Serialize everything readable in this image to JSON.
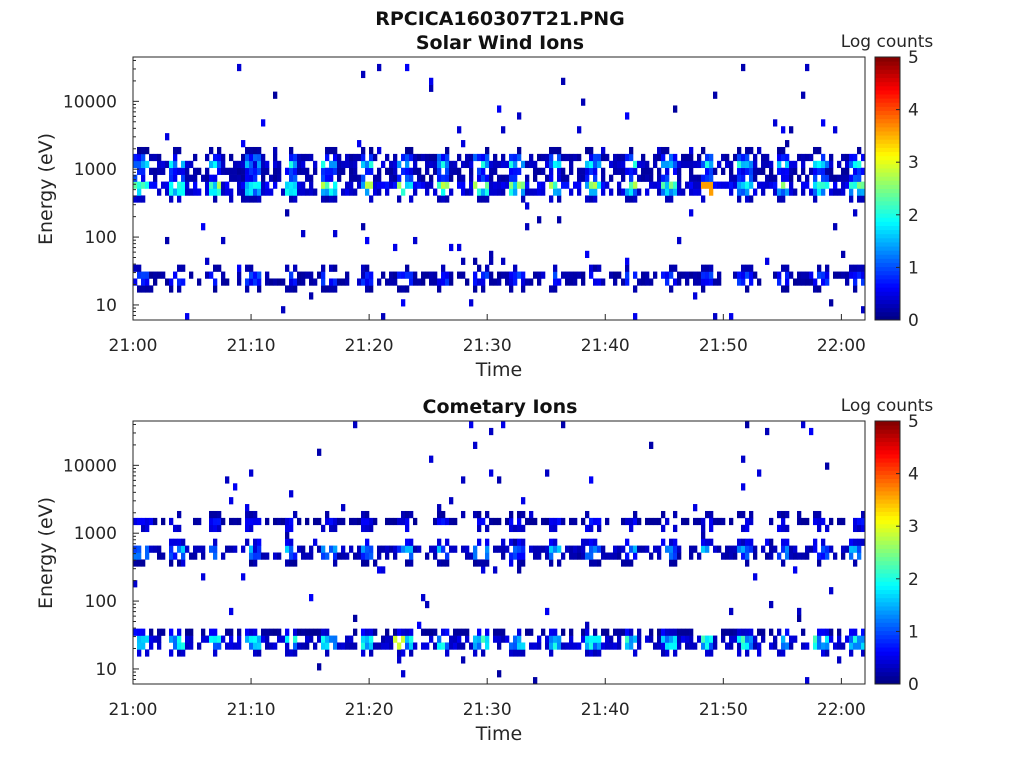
{
  "figure_title": "RPCICA160307T21.PNG",
  "colors": {
    "colormap": [
      "#00007f",
      "#0000ff",
      "#007fff",
      "#00ffff",
      "#7fff7f",
      "#ffff00",
      "#ff7f00",
      "#ff0000",
      "#7f0000"
    ]
  },
  "chart_data": [
    {
      "type": "heatmap",
      "title": "Solar Wind Ions",
      "xlabel": "Time",
      "ylabel": "Energy (eV)",
      "x_ticks": [
        "21:00",
        "21:10",
        "21:20",
        "21:30",
        "21:40",
        "21:50",
        "22:00"
      ],
      "x_range_minutes": [
        0,
        62
      ],
      "y_ticks": [
        "10",
        "100",
        "1000",
        "10000"
      ],
      "y_range_ev": [
        6,
        45000
      ],
      "y_scale": "log",
      "colorbar": {
        "label": "Log counts",
        "ticks": [
          "0",
          "1",
          "2",
          "3",
          "4",
          "5"
        ],
        "range": [
          0,
          5
        ]
      },
      "bands": [
        {
          "energy_ev": 1200,
          "intensity": 1.8
        },
        {
          "energy_ev": 550,
          "intensity": 2.6
        },
        {
          "energy_ev": 25,
          "intensity": 1.0
        }
      ],
      "peak": {
        "time_minutes": 48.5,
        "energy_ev": 560,
        "log_counts": 3.6
      }
    },
    {
      "type": "heatmap",
      "title": "Cometary Ions",
      "xlabel": "Time",
      "ylabel": "Energy (eV)",
      "x_ticks": [
        "21:00",
        "21:10",
        "21:20",
        "21:30",
        "21:40",
        "21:50",
        "22:00"
      ],
      "x_range_minutes": [
        0,
        62
      ],
      "y_ticks": [
        "10",
        "100",
        "1000",
        "10000"
      ],
      "y_range_ev": [
        6,
        45000
      ],
      "y_scale": "log",
      "colorbar": {
        "label": "Log counts",
        "ticks": [
          "0",
          "1",
          "2",
          "3",
          "4",
          "5"
        ],
        "range": [
          0,
          5
        ]
      },
      "bands": [
        {
          "energy_ev": 25,
          "intensity": 2.2
        },
        {
          "energy_ev": 550,
          "intensity": 1.5
        },
        {
          "energy_ev": 1400,
          "intensity": 0.7
        }
      ],
      "peak": {
        "time_minutes": 22.5,
        "energy_ev": 25,
        "log_counts": 2.9
      }
    }
  ]
}
